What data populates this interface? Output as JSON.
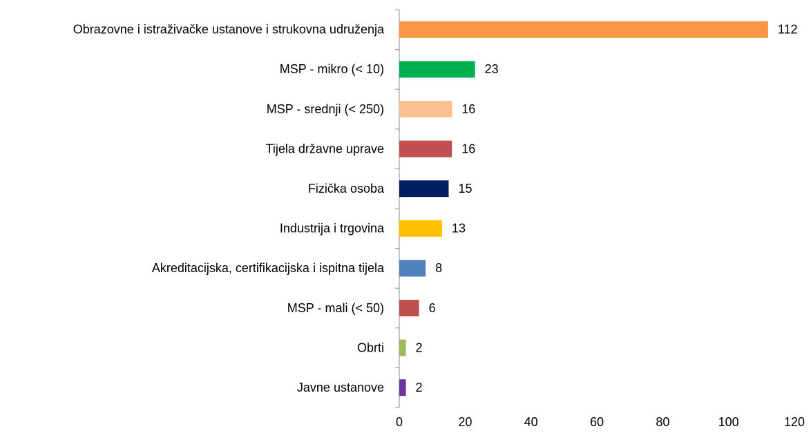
{
  "chart_data": {
    "type": "barh",
    "categories": [
      "Obrazovne i istraživačke ustanove i strukovna udruženja",
      "MSP - mikro (< 10)",
      "MSP - srednji (< 250)",
      "Tijela državne uprave",
      "Fizička osoba",
      "Industrija i trgovina",
      "Akreditacijska, certifikacijska i ispitna tijela",
      "MSP - mali (< 50)",
      "Obrti",
      "Javne ustanove"
    ],
    "values": [
      112,
      23,
      16,
      16,
      15,
      13,
      8,
      6,
      2,
      2
    ],
    "colors": [
      "#f79646",
      "#00b050",
      "#fac090",
      "#c0504d",
      "#002060",
      "#ffc000",
      "#4f81bd",
      "#c0504d",
      "#9bbb59",
      "#7030a0"
    ],
    "xlim": [
      0,
      120
    ],
    "xticks": [
      0,
      20,
      40,
      60,
      80,
      100,
      120
    ],
    "grid": false
  }
}
